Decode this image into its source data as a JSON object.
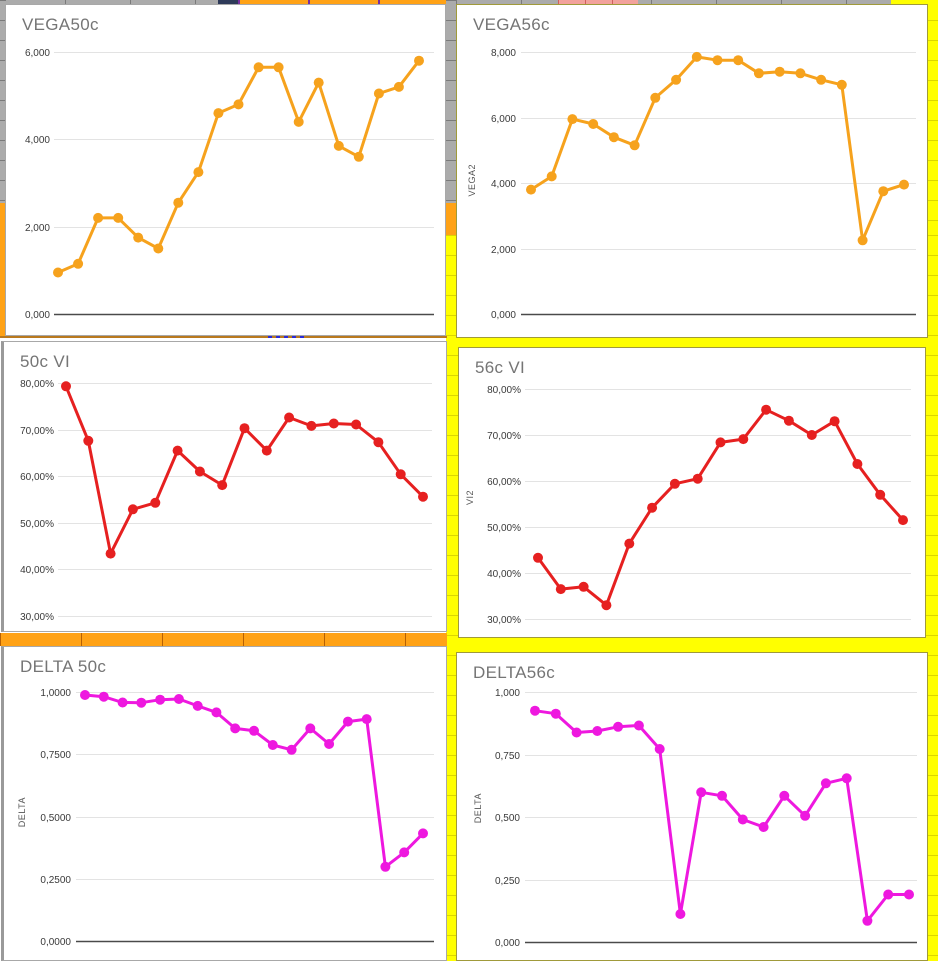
{
  "app": {
    "context": "spreadsheet sheet with six embedded line charts on colored cells"
  },
  "palette": {
    "yellow_cells": "#FFFF00",
    "orange_cells": "#FFA216",
    "gray_cells": "#ABABAB",
    "pink_cells": "#F2A29C",
    "navy_cell": "#2E3A59",
    "title_text": "#757575",
    "tick_text": "#3A3A3A",
    "gridline": "#E3E3E3"
  },
  "chart_data": [
    {
      "id": "vega50c",
      "type": "line",
      "title": "VEGA50c",
      "ylabel": "",
      "color": "#F6A21D",
      "grid": true,
      "legend": "none",
      "dark_baseline": true,
      "ylim": [
        0,
        6000
      ],
      "yticks": [
        {
          "label": "6,000",
          "value": 6000
        },
        {
          "label": "4,000",
          "value": 4000
        },
        {
          "label": "2,000",
          "value": 2000
        },
        {
          "label": "0,000",
          "value": 0
        }
      ],
      "values": [
        950,
        1150,
        2200,
        2200,
        1750,
        1500,
        2550,
        3250,
        4600,
        4800,
        5650,
        5650,
        4400,
        5300,
        3850,
        3600,
        5050,
        5200,
        5800
      ]
    },
    {
      "id": "vega56c",
      "type": "line",
      "title": "VEGA56c",
      "ylabel": "VEGA2",
      "color": "#F6A21D",
      "grid": true,
      "legend": "none",
      "dark_baseline": true,
      "ylim": [
        0,
        8000
      ],
      "yticks": [
        {
          "label": "8,000",
          "value": 8000
        },
        {
          "label": "6,000",
          "value": 6000
        },
        {
          "label": "4,000",
          "value": 4000
        },
        {
          "label": "2,000",
          "value": 2000
        },
        {
          "label": "0,000",
          "value": 0
        }
      ],
      "values": [
        3800,
        4200,
        5950,
        5800,
        5400,
        5150,
        6600,
        7150,
        7850,
        7750,
        7750,
        7350,
        7400,
        7350,
        7150,
        7000,
        2250,
        3750,
        3950
      ]
    },
    {
      "id": "vi50c",
      "type": "line",
      "title": "50c VI",
      "ylabel": "",
      "color": "#E62020",
      "grid": true,
      "legend": "none",
      "dark_baseline": false,
      "ylim": [
        30,
        80
      ],
      "yticks": [
        {
          "label": "80,00%",
          "value": 80
        },
        {
          "label": "70,00%",
          "value": 70
        },
        {
          "label": "60,00%",
          "value": 60
        },
        {
          "label": "50,00%",
          "value": 50
        },
        {
          "label": "40,00%",
          "value": 40
        },
        {
          "label": "30,00%",
          "value": 30
        }
      ],
      "values": [
        79.3,
        67.6,
        43.4,
        52.9,
        54.3,
        65.5,
        61.0,
        58.1,
        70.3,
        65.5,
        72.6,
        70.8,
        71.3,
        71.1,
        67.3,
        60.4,
        55.6
      ]
    },
    {
      "id": "vi56c",
      "type": "line",
      "title": "56c VI",
      "ylabel": "VI2",
      "color": "#E62020",
      "grid": true,
      "legend": "none",
      "dark_baseline": false,
      "ylim": [
        30,
        80
      ],
      "yticks": [
        {
          "label": "80,00%",
          "value": 80
        },
        {
          "label": "70,00%",
          "value": 70
        },
        {
          "label": "60,00%",
          "value": 60
        },
        {
          "label": "50,00%",
          "value": 50
        },
        {
          "label": "40,00%",
          "value": 40
        },
        {
          "label": "30,00%",
          "value": 30
        }
      ],
      "values": [
        43.3,
        36.5,
        37.0,
        33.0,
        46.4,
        54.2,
        59.4,
        60.5,
        68.4,
        69.1,
        75.5,
        73.1,
        70.0,
        73.0,
        63.7,
        57.0,
        51.5
      ]
    },
    {
      "id": "delta50c",
      "type": "line",
      "title": "DELTA 50c",
      "ylabel": "DELTA",
      "color": "#EE18DF",
      "grid": true,
      "legend": "none",
      "dark_baseline": true,
      "ylim": [
        0,
        1
      ],
      "yticks": [
        {
          "label": "1,0000",
          "value": 1.0
        },
        {
          "label": "0,7500",
          "value": 0.75
        },
        {
          "label": "0,5000",
          "value": 0.5
        },
        {
          "label": "0,2500",
          "value": 0.25
        },
        {
          "label": "0,0000",
          "value": 0
        }
      ],
      "values": [
        0.988,
        0.981,
        0.958,
        0.957,
        0.969,
        0.972,
        0.944,
        0.918,
        0.854,
        0.844,
        0.787,
        0.768,
        0.854,
        0.791,
        0.881,
        0.891,
        0.298,
        0.356,
        0.432
      ]
    },
    {
      "id": "delta56c",
      "type": "line",
      "title": "DELTA56c",
      "ylabel": "DELTA",
      "color": "#EE18DF",
      "grid": true,
      "legend": "none",
      "dark_baseline": true,
      "ylim": [
        0,
        1
      ],
      "yticks": [
        {
          "label": "1,000",
          "value": 1.0
        },
        {
          "label": "0,750",
          "value": 0.75
        },
        {
          "label": "0,500",
          "value": 0.5
        },
        {
          "label": "0,250",
          "value": 0.25
        },
        {
          "label": "0,000",
          "value": 0
        }
      ],
      "values": [
        0.925,
        0.913,
        0.838,
        0.844,
        0.861,
        0.866,
        0.772,
        0.112,
        0.599,
        0.585,
        0.49,
        0.46,
        0.585,
        0.505,
        0.635,
        0.655,
        0.085,
        0.19,
        0.19
      ]
    }
  ]
}
